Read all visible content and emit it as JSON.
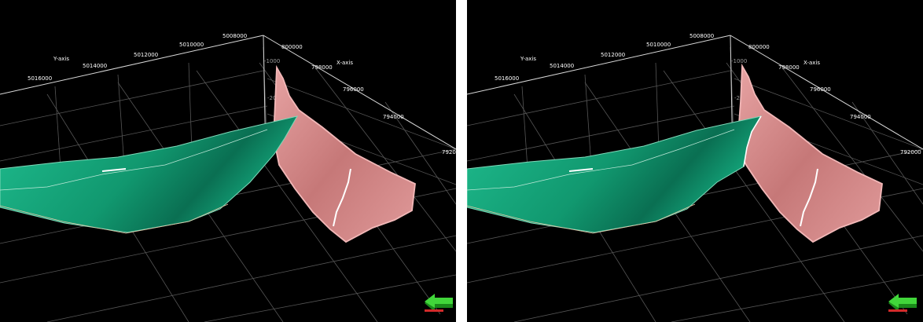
{
  "axes": {
    "y_axis_label": "Y-axis",
    "x_axis_label": "X-axis",
    "y_ticks": [
      "5016000",
      "5014000",
      "5012000",
      "5010000",
      "5008000"
    ],
    "x_ticks": [
      "800000",
      "798000",
      "796000",
      "794000",
      "792000"
    ],
    "z_ticks": [
      "-1000",
      "-2000"
    ]
  },
  "colors": {
    "green_surface": "#19b386",
    "pink_surface": "#d98a8a",
    "background": "#000000",
    "grid": "#565656"
  },
  "icons": {
    "orientation": "orientation-arrow-icon"
  }
}
